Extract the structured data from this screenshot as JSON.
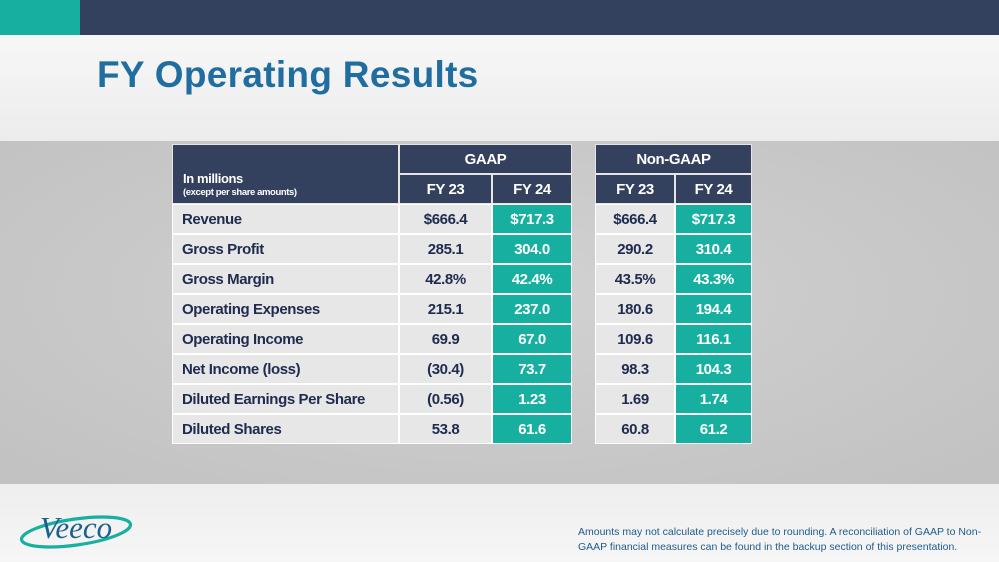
{
  "slide": {
    "title": "FY Operating Results",
    "footnote": "Amounts may not calculate precisely due to rounding.  A reconciliation of GAAP to Non-GAAP financial measures can be found in the backup section of this presentation.",
    "logo_text": "Veeco"
  },
  "colors": {
    "navy": "#33415f",
    "teal": "#17b0a0",
    "title_blue": "#206ea0",
    "text_navy": "#1f2b4f"
  },
  "table": {
    "units_label": "In millions",
    "units_note": "(except per share amounts)",
    "groups": [
      "GAAP",
      "Non-GAAP"
    ],
    "columns": [
      "FY 23",
      "FY 24",
      "FY 23",
      "FY 24"
    ],
    "rows": [
      {
        "label": "Revenue",
        "values": [
          "$666.4",
          "$717.3",
          "$666.4",
          "$717.3"
        ]
      },
      {
        "label": "Gross Profit",
        "values": [
          "285.1",
          "304.0",
          "290.2",
          "310.4"
        ]
      },
      {
        "label": "Gross Margin",
        "values": [
          "42.8%",
          "42.4%",
          "43.5%",
          "43.3%"
        ]
      },
      {
        "label": "Operating Expenses",
        "values": [
          "215.1",
          "237.0",
          "180.6",
          "194.4"
        ]
      },
      {
        "label": "Operating Income",
        "values": [
          "69.9",
          "67.0",
          "109.6",
          "116.1"
        ]
      },
      {
        "label": "Net Income (loss)",
        "values": [
          "(30.4)",
          "73.7",
          "98.3",
          "104.3"
        ]
      },
      {
        "label": "Diluted Earnings Per Share",
        "values": [
          "(0.56)",
          "1.23",
          "1.69",
          "1.74"
        ]
      },
      {
        "label": "Diluted Shares",
        "values": [
          "53.8",
          "61.6",
          "60.8",
          "61.2"
        ]
      }
    ]
  }
}
